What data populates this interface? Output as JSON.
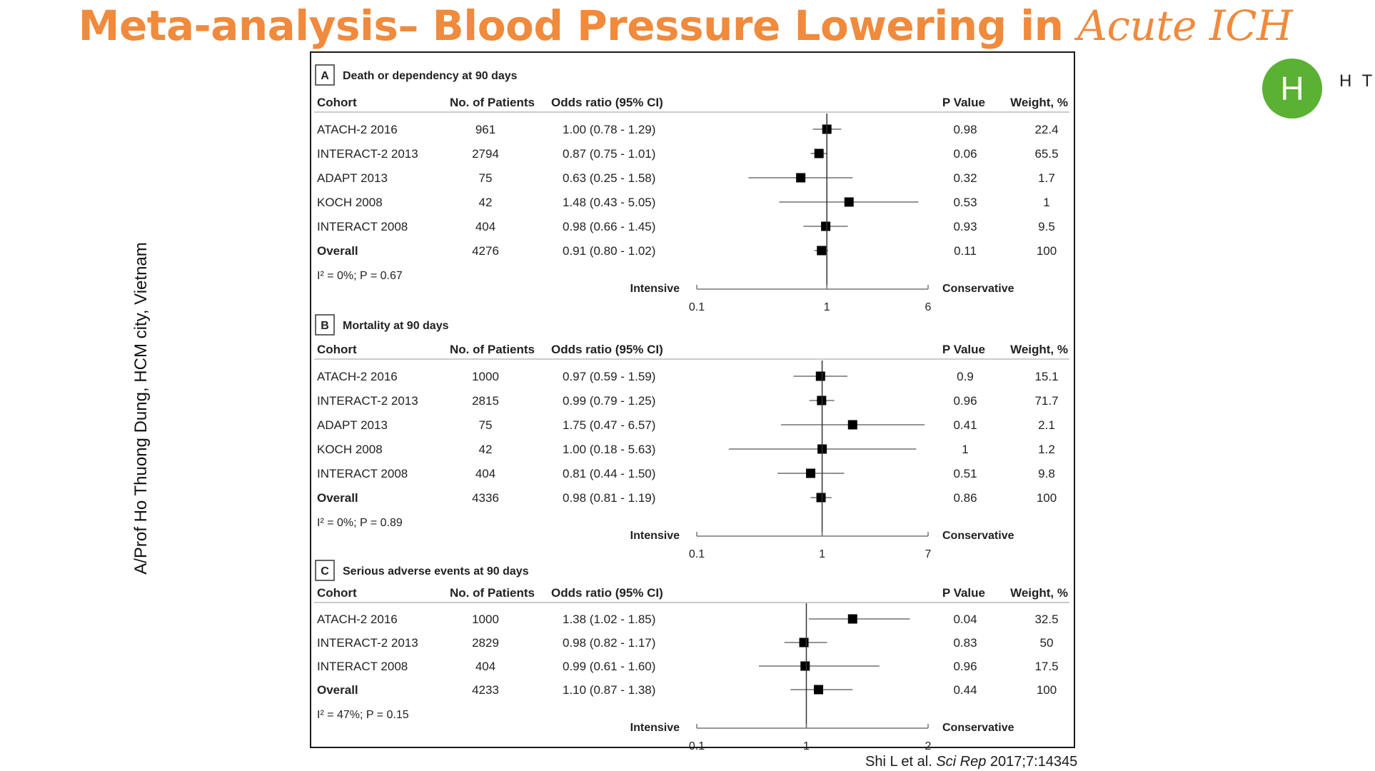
{
  "slide": {
    "title_main": "Meta-analysis– Blood Pressure Lowering in ",
    "title_italic": "Acute ICH",
    "side_author": "A/Prof Ho Thuong Dung, HCM city, Vietnam",
    "avatar_letter": "H",
    "avatar_text": "H T",
    "citation_prefix": "Shi L et al. ",
    "citation_journal": "Sci Rep",
    "citation_suffix": " 2017;7:14345"
  },
  "colors": {
    "title": "#f08a3c",
    "avatar": "#5ab133",
    "marker": "#000000"
  },
  "chart_data": [
    {
      "type": "forest",
      "panel": "A",
      "title": "Death or dependency at 90 days",
      "columns": [
        "Cohort",
        "No. of Patients",
        "Odds ratio (95% CI)",
        "P Value",
        "Weight, %"
      ],
      "rows": [
        {
          "cohort": "ATACH-2 2016",
          "n": "961",
          "or_text": "1.00 (0.78 - 1.29)",
          "or": 1.0,
          "lo": 0.78,
          "hi": 1.29,
          "p": "0.98",
          "weight": "22.4"
        },
        {
          "cohort": "INTERACT-2 2013",
          "n": "2794",
          "or_text": "0.87 (0.75 - 1.01)",
          "or": 0.87,
          "lo": 0.75,
          "hi": 1.01,
          "p": "0.06",
          "weight": "65.5"
        },
        {
          "cohort": "ADAPT 2013",
          "n": "75",
          "or_text": "0.63 (0.25 - 1.58)",
          "or": 0.63,
          "lo": 0.25,
          "hi": 1.58,
          "p": "0.32",
          "weight": "1.7"
        },
        {
          "cohort": "KOCH 2008",
          "n": "42",
          "or_text": "1.48 (0.43 - 5.05)",
          "or": 1.48,
          "lo": 0.43,
          "hi": 5.05,
          "p": "0.53",
          "weight": "1"
        },
        {
          "cohort": "INTERACT 2008",
          "n": "404",
          "or_text": "0.98 (0.66 - 1.45)",
          "or": 0.98,
          "lo": 0.66,
          "hi": 1.45,
          "p": "0.93",
          "weight": "9.5"
        },
        {
          "cohort": "Overall",
          "n": "4276",
          "or_text": "0.91 (0.80 - 1.02)",
          "or": 0.91,
          "lo": 0.8,
          "hi": 1.02,
          "p": "0.11",
          "weight": "100",
          "overall": true
        }
      ],
      "heterogeneity": "I² = 0%; P = 0.67",
      "axis": {
        "ticks": [
          "0.1",
          "1",
          "6"
        ],
        "tick_values": [
          0.1,
          1,
          6
        ],
        "min": 0.1,
        "max": 6,
        "scale": "log",
        "left_label": "Intensive",
        "right_label": "Conservative"
      }
    },
    {
      "type": "forest",
      "panel": "B",
      "title": "Mortality at 90 days",
      "columns": [
        "Cohort",
        "No. of Patients",
        "Odds ratio (95% CI)",
        "P Value",
        "Weight, %"
      ],
      "rows": [
        {
          "cohort": "ATACH-2 2016",
          "n": "1000",
          "or_text": "0.97 (0.59 - 1.59)",
          "or": 0.97,
          "lo": 0.59,
          "hi": 1.59,
          "p": "0.9",
          "weight": "15.1"
        },
        {
          "cohort": "INTERACT-2 2013",
          "n": "2815",
          "or_text": "0.99 (0.79 - 1.25)",
          "or": 0.99,
          "lo": 0.79,
          "hi": 1.25,
          "p": "0.96",
          "weight": "71.7"
        },
        {
          "cohort": "ADAPT 2013",
          "n": "75",
          "or_text": "1.75 (0.47 - 6.57)",
          "or": 1.75,
          "lo": 0.47,
          "hi": 6.57,
          "p": "0.41",
          "weight": "2.1"
        },
        {
          "cohort": "KOCH 2008",
          "n": "42",
          "or_text": "1.00 (0.18 - 5.63)",
          "or": 1.0,
          "lo": 0.18,
          "hi": 5.63,
          "p": "1",
          "weight": "1.2"
        },
        {
          "cohort": "INTERACT 2008",
          "n": "404",
          "or_text": "0.81 (0.44 - 1.50)",
          "or": 0.81,
          "lo": 0.44,
          "hi": 1.5,
          "p": "0.51",
          "weight": "9.8"
        },
        {
          "cohort": "Overall",
          "n": "4336",
          "or_text": "0.98 (0.81 - 1.19)",
          "or": 0.98,
          "lo": 0.81,
          "hi": 1.19,
          "p": "0.86",
          "weight": "100",
          "overall": true
        }
      ],
      "heterogeneity": "I² = 0%; P = 0.89",
      "axis": {
        "ticks": [
          "0.1",
          "1",
          "7"
        ],
        "tick_values": [
          0.1,
          1,
          7
        ],
        "min": 0.1,
        "max": 7,
        "scale": "log",
        "left_label": "Intensive",
        "right_label": "Conservative"
      }
    },
    {
      "type": "forest",
      "panel": "C",
      "title": "Serious adverse events at 90 days",
      "columns": [
        "Cohort",
        "No. of Patients",
        "Odds ratio (95% CI)",
        "P Value",
        "Weight, %"
      ],
      "rows": [
        {
          "cohort": "ATACH-2 2016",
          "n": "1000",
          "or_text": "1.38 (1.02 - 1.85)",
          "or": 1.38,
          "lo": 1.02,
          "hi": 1.85,
          "p": "0.04",
          "weight": "32.5"
        },
        {
          "cohort": "INTERACT-2 2013",
          "n": "2829",
          "or_text": "0.98 (0.82 - 1.17)",
          "or": 0.98,
          "lo": 0.82,
          "hi": 1.17,
          "p": "0.83",
          "weight": "50"
        },
        {
          "cohort": "INTERACT 2008",
          "n": "404",
          "or_text": "0.99 (0.61 - 1.60)",
          "or": 0.99,
          "lo": 0.61,
          "hi": 1.6,
          "p": "0.96",
          "weight": "17.5"
        },
        {
          "cohort": "Overall",
          "n": "4233",
          "or_text": "1.10 (0.87 - 1.38)",
          "or": 1.1,
          "lo": 0.87,
          "hi": 1.38,
          "p": "0.44",
          "weight": "100",
          "overall": true
        }
      ],
      "heterogeneity": "I² = 47%; P = 0.15",
      "axis": {
        "ticks": [
          "0.1",
          "1",
          "2"
        ],
        "tick_values": [
          0.1,
          1,
          2
        ],
        "min": 0.1,
        "max": 2,
        "scale": "linear",
        "left_label": "Intensive",
        "right_label": "Conservative"
      }
    }
  ]
}
